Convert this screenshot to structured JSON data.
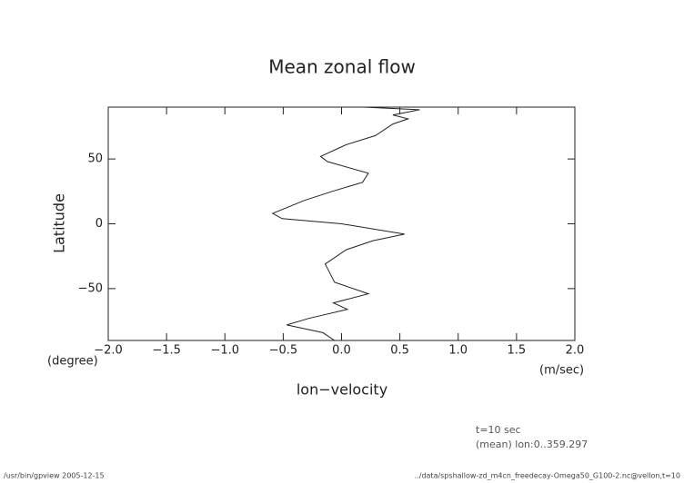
{
  "chart_data": {
    "type": "line",
    "title": "Mean zonal flow",
    "xlabel": "lon−velocity",
    "ylabel": "Latitude",
    "xunit": "(m/sec)",
    "yunit": "(degree)",
    "annotations": [
      "t=10 sec",
      "(mean) lon:0..359.297"
    ],
    "footer_left": "/usr/bin/gpview  2005-12-15",
    "footer_right": "../data/spshallow-zd_m4cn_freedecay-Omega50_G100-2.nc@vellon,t=10",
    "xlim": [
      -2,
      2
    ],
    "ylim": [
      -90,
      90
    ],
    "xticks": [
      {
        "value": -2,
        "label": "−2.0"
      },
      {
        "value": -1.5,
        "label": "−1.5"
      },
      {
        "value": -1,
        "label": "−1.0"
      },
      {
        "value": -0.5,
        "label": "−0.5"
      },
      {
        "value": 0,
        "label": "0.0"
      },
      0.5,
      {
        "value": 1,
        "label": "1.0"
      },
      1.5,
      {
        "value": 2,
        "label": "2.0"
      }
    ],
    "yticks": [
      {
        "value": -50,
        "label": "−50"
      },
      0,
      50
    ],
    "color": "#222222",
    "y": [
      90,
      88,
      84,
      81,
      77,
      68,
      61,
      52,
      48,
      39,
      32,
      25,
      18,
      8,
      4,
      0,
      -8,
      -13,
      -20,
      -31,
      -38,
      -45,
      -54,
      -61,
      -66,
      -73,
      -78,
      -84,
      -90
    ],
    "values": [
      0.19,
      0.67,
      0.44,
      0.57,
      0.44,
      0.29,
      0.04,
      -0.18,
      -0.12,
      0.23,
      0.18,
      -0.08,
      -0.32,
      -0.59,
      -0.51,
      0,
      0.54,
      0.27,
      0.04,
      -0.14,
      -0.1,
      -0.06,
      0.23,
      -0.07,
      0.05,
      -0.28,
      -0.47,
      -0.16,
      -0.06
    ]
  }
}
